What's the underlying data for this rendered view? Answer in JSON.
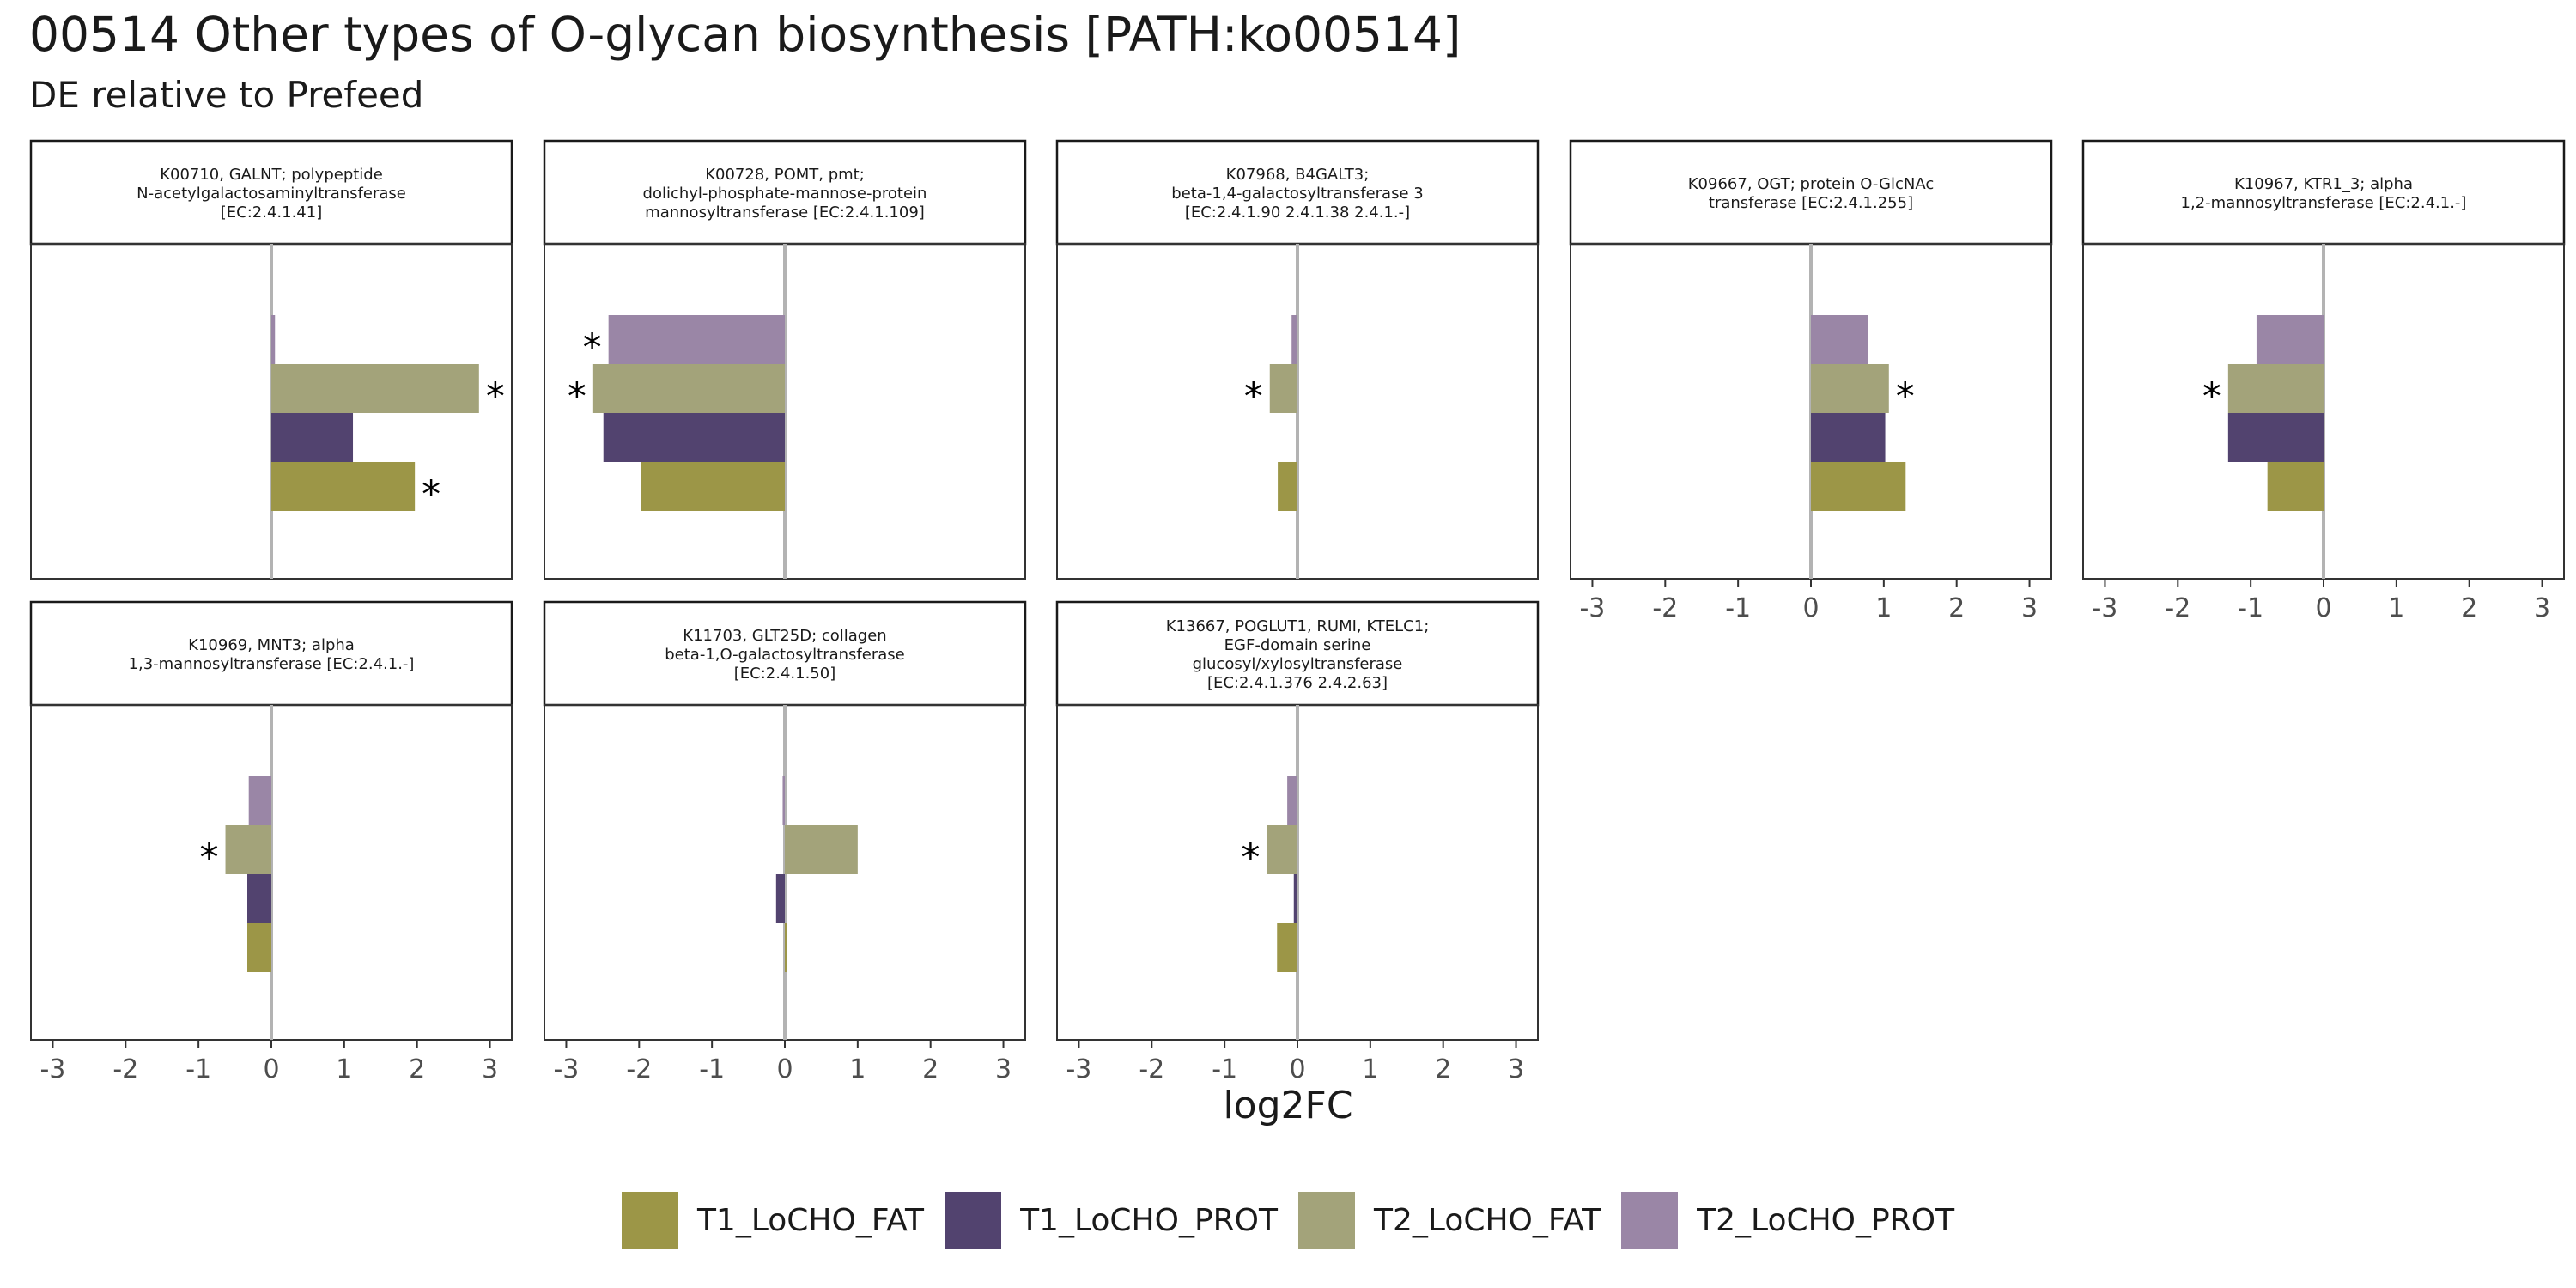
{
  "title": "00514 Other types of O-glycan biosynthesis [PATH:ko00514]",
  "subtitle": "DE relative to Prefeed",
  "chart_data": {
    "type": "bar",
    "orientation": "horizontal",
    "facet_layout": "5 columns x 2 rows",
    "xlabel": "log2FC",
    "xlim": [
      -3.3,
      3.3
    ],
    "x_ticks": [
      -3,
      -2,
      -1,
      0,
      1,
      2,
      3
    ],
    "x_tick_labels": [
      "-3",
      "-2",
      "-1",
      "0",
      "1",
      "2",
      "3"
    ],
    "grid": false,
    "legend_position": "bottom",
    "series_order_top_to_bottom": [
      "T2_LoCHO_PROT",
      "T2_LoCHO_FAT",
      "T1_LoCHO_PROT",
      "T1_LoCHO_FAT"
    ],
    "series": [
      {
        "name": "T1_LoCHO_FAT",
        "color": "#9c9647"
      },
      {
        "name": "T1_LoCHO_PROT",
        "color": "#52436f"
      },
      {
        "name": "T2_LoCHO_FAT",
        "color": "#a3a37a"
      },
      {
        "name": "T2_LoCHO_PROT",
        "color": "#9a86a6"
      }
    ],
    "facets": [
      {
        "strip": [
          "K00710, GALNT; polypeptide",
          "N-acetylgalactosaminyltransferase",
          "[EC:2.4.1.41]"
        ],
        "values": {
          "T1_LoCHO_FAT": 1.97,
          "T1_LoCHO_PROT": 1.12,
          "T2_LoCHO_FAT": 2.85,
          "T2_LoCHO_PROT": 0.05
        },
        "significant": {
          "T1_LoCHO_FAT": true,
          "T1_LoCHO_PROT": false,
          "T2_LoCHO_FAT": true,
          "T2_LoCHO_PROT": false
        }
      },
      {
        "strip": [
          "K00728, POMT, pmt;",
          "dolichyl-phosphate-mannose-protein",
          "mannosyltransferase [EC:2.4.1.109]"
        ],
        "values": {
          "T1_LoCHO_FAT": -1.97,
          "T1_LoCHO_PROT": -2.49,
          "T2_LoCHO_FAT": -2.63,
          "T2_LoCHO_PROT": -2.42
        },
        "significant": {
          "T1_LoCHO_FAT": false,
          "T1_LoCHO_PROT": false,
          "T2_LoCHO_FAT": true,
          "T2_LoCHO_PROT": true
        }
      },
      {
        "strip": [
          "K07968, B4GALT3;",
          "beta-1,4-galactosyltransferase 3",
          "[EC:2.4.1.90 2.4.1.38 2.4.1.-]"
        ],
        "values": {
          "T1_LoCHO_FAT": -0.27,
          "T1_LoCHO_PROT": 0.0,
          "T2_LoCHO_FAT": -0.38,
          "T2_LoCHO_PROT": -0.08
        },
        "significant": {
          "T1_LoCHO_FAT": false,
          "T1_LoCHO_PROT": false,
          "T2_LoCHO_FAT": true,
          "T2_LoCHO_PROT": false
        }
      },
      {
        "strip": [
          "K09667, OGT; protein O-GlcNAc",
          "transferase [EC:2.4.1.255]"
        ],
        "values": {
          "T1_LoCHO_FAT": 1.3,
          "T1_LoCHO_PROT": 1.02,
          "T2_LoCHO_FAT": 1.07,
          "T2_LoCHO_PROT": 0.78
        },
        "significant": {
          "T1_LoCHO_FAT": false,
          "T1_LoCHO_PROT": false,
          "T2_LoCHO_FAT": true,
          "T2_LoCHO_PROT": false
        }
      },
      {
        "strip": [
          "K10967, KTR1_3; alpha",
          "1,2-mannosyltransferase [EC:2.4.1.-]"
        ],
        "values": {
          "T1_LoCHO_FAT": -0.77,
          "T1_LoCHO_PROT": -1.31,
          "T2_LoCHO_FAT": -1.31,
          "T2_LoCHO_PROT": -0.92
        },
        "significant": {
          "T1_LoCHO_FAT": false,
          "T1_LoCHO_PROT": false,
          "T2_LoCHO_FAT": true,
          "T2_LoCHO_PROT": false
        }
      },
      {
        "strip": [
          "K10969, MNT3; alpha",
          "1,3-mannosyltransferase [EC:2.4.1.-]"
        ],
        "values": {
          "T1_LoCHO_FAT": -0.33,
          "T1_LoCHO_PROT": -0.33,
          "T2_LoCHO_FAT": -0.63,
          "T2_LoCHO_PROT": -0.31
        },
        "significant": {
          "T1_LoCHO_FAT": false,
          "T1_LoCHO_PROT": false,
          "T2_LoCHO_FAT": true,
          "T2_LoCHO_PROT": false
        }
      },
      {
        "strip": [
          "K11703, GLT25D; collagen",
          "beta-1,O-galactosyltransferase",
          "[EC:2.4.1.50]"
        ],
        "values": {
          "T1_LoCHO_FAT": 0.03,
          "T1_LoCHO_PROT": -0.12,
          "T2_LoCHO_FAT": 1.0,
          "T2_LoCHO_PROT": -0.03
        },
        "significant": {
          "T1_LoCHO_FAT": false,
          "T1_LoCHO_PROT": false,
          "T2_LoCHO_FAT": false,
          "T2_LoCHO_PROT": false
        }
      },
      {
        "strip": [
          "K13667, POGLUT1, RUMI, KTELC1;",
          "EGF-domain serine",
          "glucosyl/xylosyltransferase",
          "[EC:2.4.1.376 2.4.2.63]"
        ],
        "values": {
          "T1_LoCHO_FAT": -0.28,
          "T1_LoCHO_PROT": -0.05,
          "T2_LoCHO_FAT": -0.42,
          "T2_LoCHO_PROT": -0.14
        },
        "significant": {
          "T1_LoCHO_FAT": false,
          "T1_LoCHO_PROT": false,
          "T2_LoCHO_FAT": true,
          "T2_LoCHO_PROT": false
        }
      }
    ]
  },
  "significance_marker": "*"
}
